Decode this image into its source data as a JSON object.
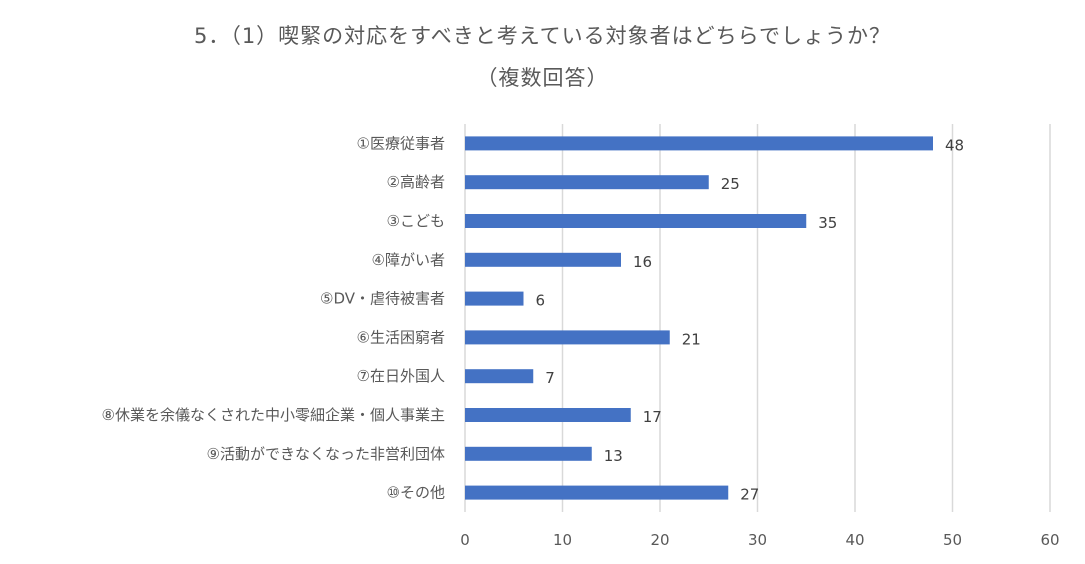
{
  "chart_data": {
    "type": "bar",
    "orientation": "horizontal",
    "title": "5．（1）喫緊の対応をすべきと考えている対象者はどちらでしょうか？",
    "subtitle": "（複数回答）",
    "categories": [
      "①医療従事者",
      "②高齢者",
      "③こども",
      "④障がい者",
      "⑤DV・虐待被害者",
      "⑥生活困窮者",
      "⑦在日外国人",
      "⑧休業を余儀なくされた中小零細企業・個人事業主",
      "⑨活動ができなくなった非営利団体",
      "⑩その他"
    ],
    "values": [
      48,
      25,
      35,
      16,
      6,
      21,
      7,
      17,
      13,
      27
    ],
    "xlim": [
      0,
      60
    ],
    "xticks": [
      0,
      10,
      20,
      30,
      40,
      50,
      60
    ],
    "grid": true,
    "bar_color": "#4472C4",
    "grid_color": "#D9D9D9"
  }
}
